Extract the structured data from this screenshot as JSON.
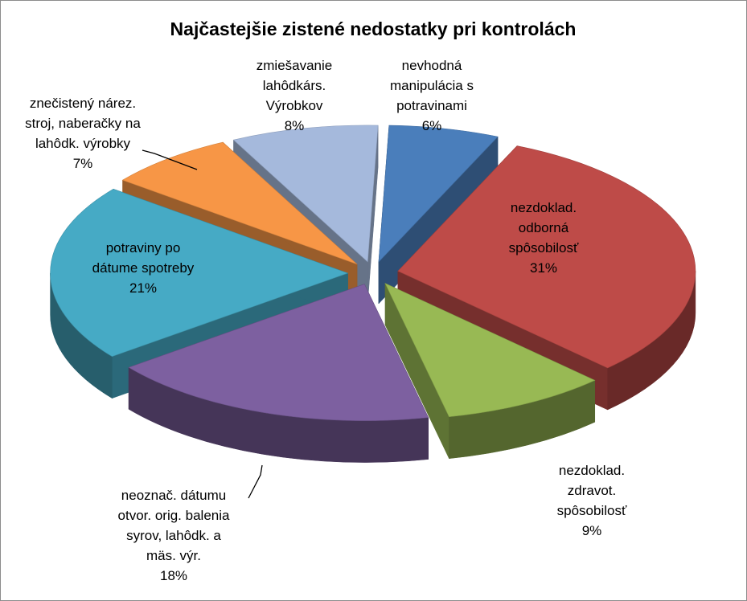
{
  "chart_data": {
    "type": "pie",
    "style": "3d-exploded",
    "title": "Najčastejšie zistené nedostatky pri kontrolách",
    "slices": [
      {
        "label": [
          "nevhodná",
          "manipulácia s",
          "potravinami"
        ],
        "percent_label": "6%",
        "value": 6,
        "color": "#4A7EBB"
      },
      {
        "label": [
          "nezdoklad.",
          "odborná",
          "spôsobilosť"
        ],
        "percent_label": "31%",
        "value": 31,
        "color": "#BE4B48"
      },
      {
        "label": [
          "nezdoklad.",
          "zdravot.",
          "spôsobilosť"
        ],
        "percent_label": "9%",
        "value": 9,
        "color": "#98B954"
      },
      {
        "label": [
          "neoznač. dátumu",
          "otvor. orig. balenia",
          "syrov, lahôdk. a",
          "mäs. výr."
        ],
        "percent_label": "18%",
        "value": 18,
        "color": "#7D60A0"
      },
      {
        "label": [
          "potraviny po",
          "dátume spotreby"
        ],
        "percent_label": "21%",
        "value": 21,
        "color": "#46AAC5"
      },
      {
        "label": [
          "znečistený nárez.",
          "stroj, naberačky na",
          "lahôdk. výrobky"
        ],
        "percent_label": "7%",
        "value": 7,
        "color": "#F79646"
      },
      {
        "label": [
          "zmiešavanie",
          "lahôdkárs.",
          "Výrobkov"
        ],
        "percent_label": "8%",
        "value": 8,
        "color": "#A5B9DC"
      }
    ],
    "legend": "none",
    "data_labels": "category-and-percent"
  }
}
